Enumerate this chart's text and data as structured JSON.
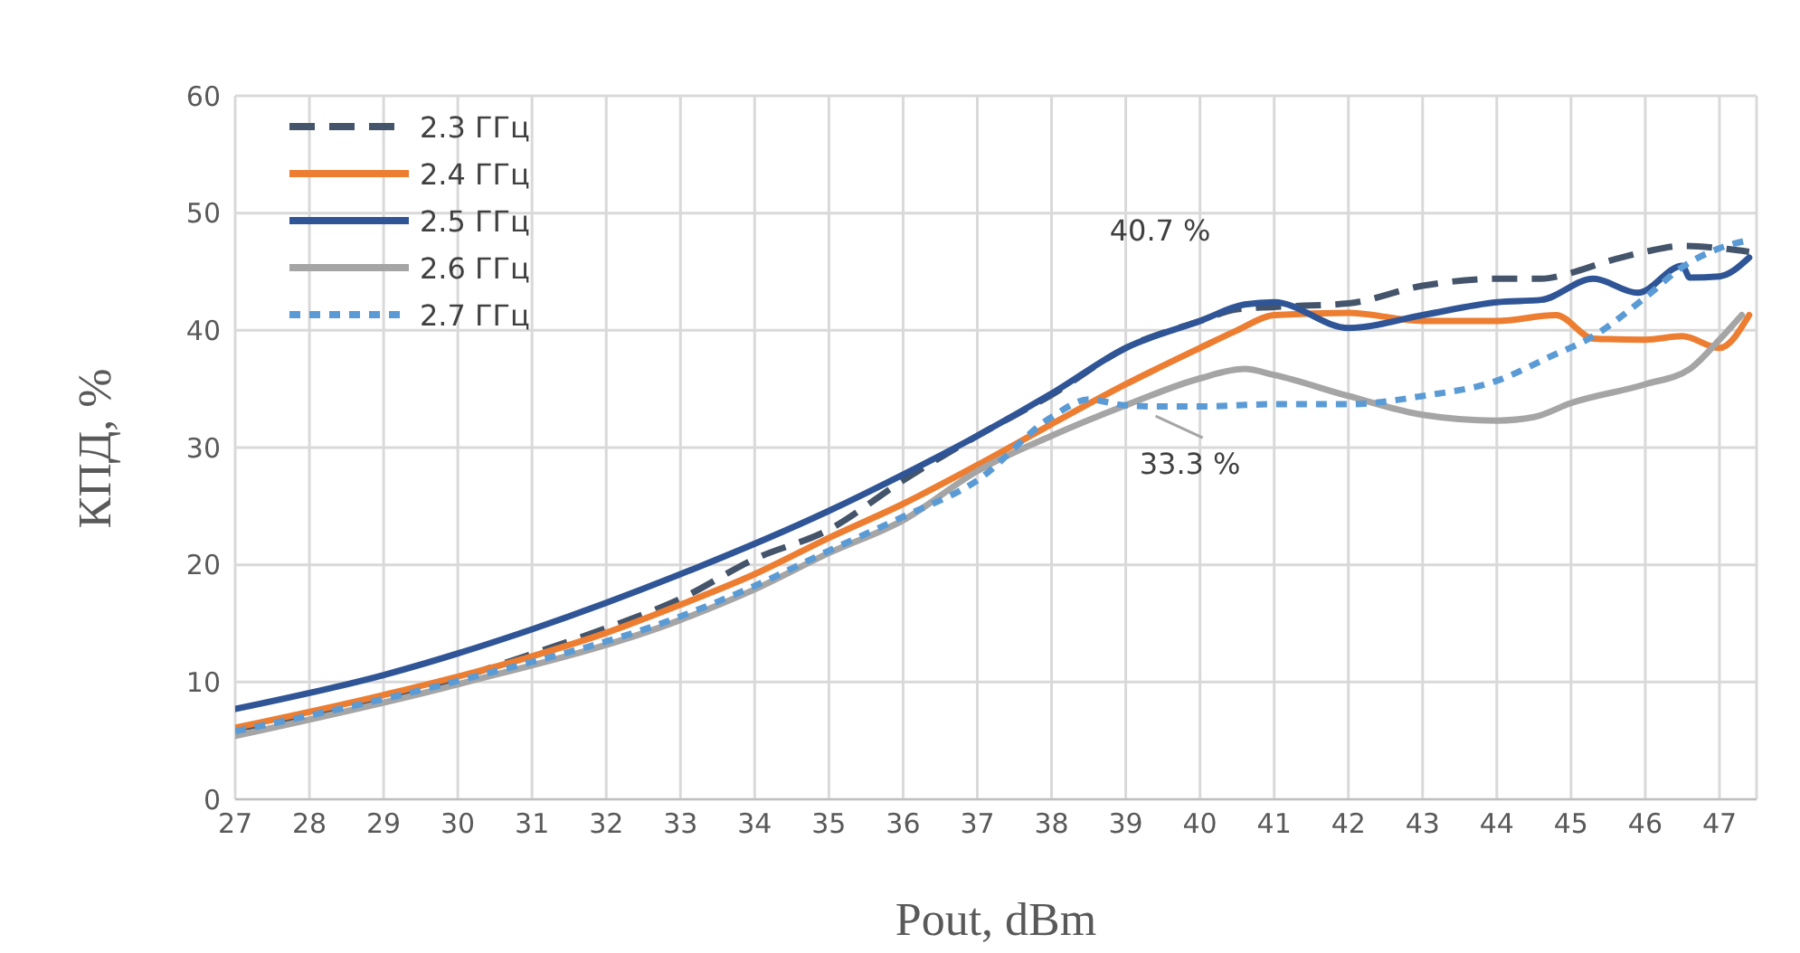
{
  "chart_data": {
    "type": "line",
    "xlabel": "Pout, dBm",
    "ylabel": "КПД, %",
    "xlim": [
      27,
      47.5
    ],
    "xticks": [
      27,
      28,
      29,
      30,
      31,
      32,
      33,
      34,
      35,
      36,
      37,
      38,
      39,
      40,
      41,
      42,
      43,
      44,
      45,
      46,
      47
    ],
    "ylim": [
      0,
      60
    ],
    "yticks": [
      0,
      10,
      20,
      30,
      40,
      50,
      60
    ],
    "grid": true,
    "legend": "top left",
    "marker": "none",
    "annotations": [
      {
        "text": "40.7 %",
        "x": 40,
        "y": 40.7
      },
      {
        "text": "33.3 %",
        "x": 39.5,
        "y": 33.3
      }
    ],
    "series": [
      {
        "name": "2.3 ГГц",
        "color": "#44546a",
        "line_style": "dashed",
        "x": [
          27,
          29,
          31,
          32,
          33,
          34,
          35,
          36,
          37,
          38,
          39,
          40,
          40.5,
          41,
          42,
          43,
          44,
          44.6,
          45,
          45.5,
          46,
          46.5,
          47,
          47.4
        ],
        "values": [
          6,
          8.5,
          12.4,
          14.6,
          17.1,
          20.5,
          23,
          27.2,
          31,
          34.5,
          38.5,
          40.8,
          41.8,
          42,
          42.3,
          43.8,
          44.4,
          44.4,
          44.9,
          45.9,
          46.7,
          47.2,
          47,
          46.7
        ]
      },
      {
        "name": "2.4 ГГц",
        "color": "#ed7d31",
        "line_style": "solid",
        "x": [
          27,
          29,
          31,
          32,
          33,
          34,
          35,
          36,
          37,
          38,
          39,
          40,
          40.5,
          41,
          42,
          43,
          44,
          44.8,
          45.3,
          46,
          46.5,
          47,
          47.4
        ],
        "values": [
          6.1,
          8.9,
          12.2,
          14.2,
          16.6,
          19.2,
          22.3,
          25.2,
          28.5,
          32,
          35.4,
          38.5,
          40,
          41.3,
          41.5,
          40.8,
          40.8,
          41.3,
          39.3,
          39.2,
          39.5,
          38.5,
          41.3
        ]
      },
      {
        "name": "2.5 ГГц",
        "color": "#2f5597",
        "line_style": "solid",
        "x": [
          27,
          29,
          31,
          33,
          35,
          36,
          37,
          38,
          39,
          40,
          40.6,
          41,
          42,
          43,
          44,
          44.6,
          45.3,
          45.9,
          46.5,
          46.6,
          47,
          47.4
        ],
        "values": [
          7.7,
          10.6,
          14.5,
          19.2,
          24.6,
          27.7,
          31,
          34.6,
          38.5,
          40.8,
          42.2,
          42.4,
          40.2,
          41.3,
          42.4,
          42.6,
          44.4,
          43.2,
          45.5,
          44.5,
          44.6,
          46.2
        ]
      },
      {
        "name": "2.6 ГГц",
        "color": "#a5a5a5",
        "line_style": "solid",
        "x": [
          27,
          30,
          33,
          34,
          35,
          36,
          37,
          38,
          39,
          40,
          40.6,
          41,
          42,
          43,
          44,
          44.5,
          45,
          46,
          46.6,
          47,
          47.3
        ],
        "values": [
          5.4,
          9.8,
          15.3,
          17.9,
          21,
          23.8,
          28,
          31,
          33.6,
          35.9,
          36.7,
          36.2,
          34.4,
          32.8,
          32.3,
          32.6,
          33.8,
          35.4,
          36.7,
          39.2,
          41.3
        ]
      },
      {
        "name": "2.7 ГГц",
        "color": "#5b9bd5",
        "line_style": "dotted",
        "x": [
          27,
          30,
          33,
          34,
          35,
          36,
          37,
          38,
          38.5,
          39,
          39.5,
          40,
          41,
          42,
          43,
          44,
          44.7,
          45.3,
          46,
          46.5,
          47,
          47.4
        ],
        "values": [
          5.8,
          10.1,
          15.6,
          18.2,
          21.2,
          24.1,
          27.2,
          32.6,
          34.1,
          33.6,
          33.5,
          33.5,
          33.7,
          33.7,
          34.4,
          35.7,
          37.7,
          39.5,
          42.8,
          45.4,
          47,
          47.7
        ]
      }
    ]
  }
}
